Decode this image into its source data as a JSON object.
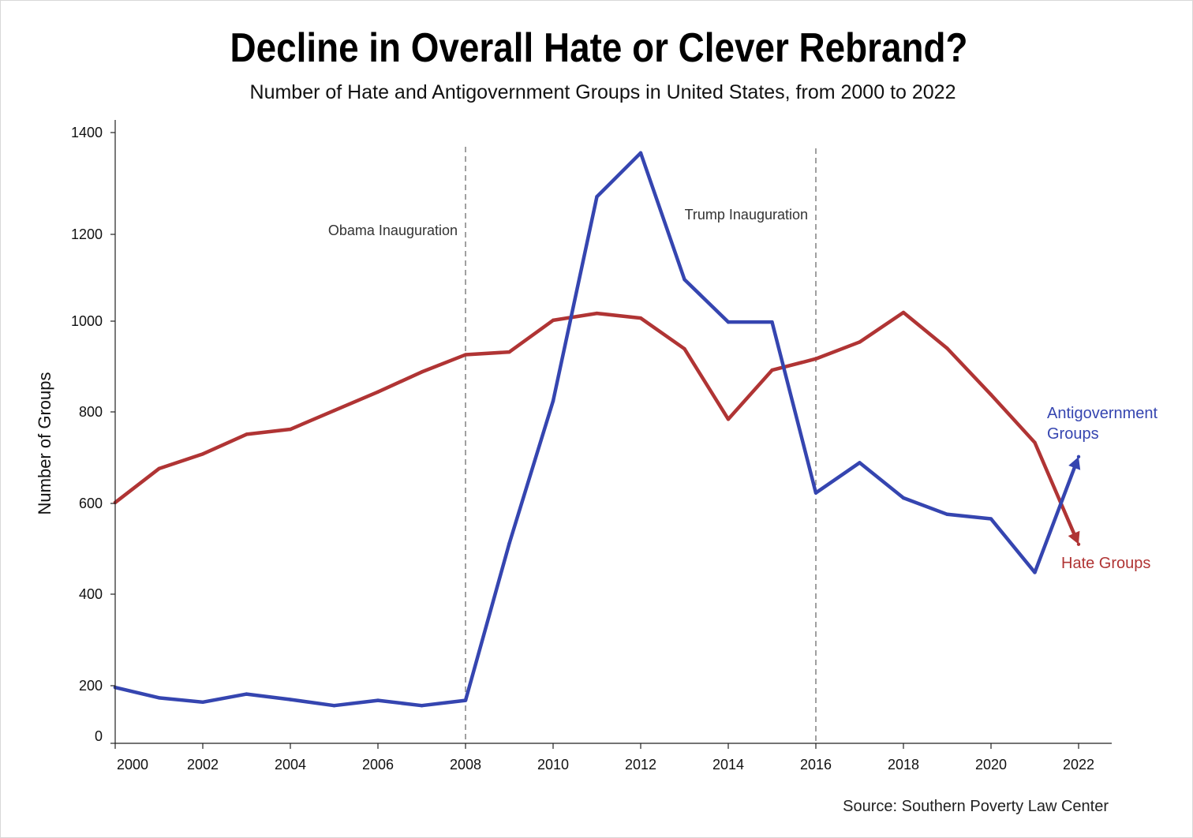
{
  "chart_data": {
    "type": "line",
    "title": "Decline in Overall Hate or Clever Rebrand?",
    "subtitle": "Number of Hate and Antigovernment Groups in United States, from 2000 to 2022",
    "xlabel": "",
    "ylabel": "Number of Groups",
    "source": "Source: Southern Poverty Law Center",
    "x_ticks": [
      2000,
      2002,
      2004,
      2006,
      2008,
      2010,
      2012,
      2014,
      2016,
      2018,
      2020,
      2022
    ],
    "y_ticks": [
      0,
      200,
      400,
      600,
      800,
      1000,
      1200,
      1400
    ],
    "xlim": [
      2000,
      2022.8
    ],
    "grid": false,
    "legend": "inline-end-labels",
    "x": [
      2000,
      2001,
      2002,
      2003,
      2004,
      2005,
      2006,
      2007,
      2008,
      2009,
      2010,
      2011,
      2012,
      2013,
      2014,
      2015,
      2016,
      2017,
      2018,
      2019,
      2020,
      2021,
      2022
    ],
    "series": [
      {
        "name": "Hate Groups",
        "color": "#b03434",
        "values": [
          602,
          676,
          708,
          751,
          762,
          803,
          844,
          888,
          926,
          932,
          1002,
          1018,
          1007,
          939,
          784,
          892,
          917,
          954,
          1020,
          940,
          838,
          733,
          510
        ],
        "end_arrow": true
      },
      {
        "name": "Antigovernment Groups",
        "color": "#3545b0",
        "values": [
          194,
          158,
          143,
          171,
          152,
          131,
          149,
          131,
          149,
          512,
          824,
          1274,
          1360,
          1096,
          998,
          998,
          623,
          689,
          612,
          576,
          566,
          448,
          702
        ],
        "end_arrow": true
      }
    ],
    "annotations": [
      {
        "x": 2008,
        "label": "Obama Inauguration",
        "style": "dashed-vertical"
      },
      {
        "x": 2016,
        "label": "Trump Inauguration",
        "style": "dashed-vertical"
      }
    ],
    "end_labels": {
      "antigovernment_line1": "Antigovernment",
      "antigovernment_line2": "Groups",
      "hate": "Hate Groups"
    },
    "colors": {
      "hate": "#b03434",
      "antigovernment": "#3545b0",
      "annotation_line": "#888888",
      "axis": "#222222"
    }
  }
}
